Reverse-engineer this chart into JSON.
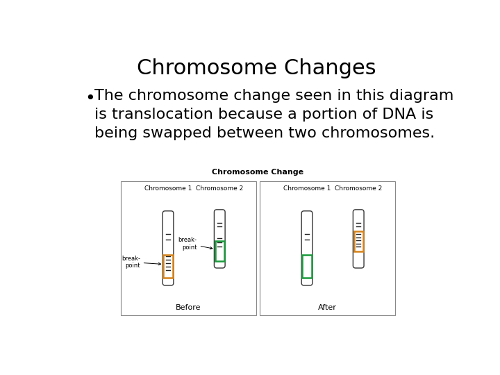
{
  "title": "Chromosome Changes",
  "bullet_text": "The chromosome change seen in this diagram\nis translocation because a portion of DNA is\nbeing swapped between two chromosomes.",
  "diagram_title": "Chromosome Change",
  "before_label": "Before",
  "after_label": "After",
  "chr1_label": "Chromosome 1",
  "chr2_label": "Chromosome 2",
  "break_point_label": "break-\npoint",
  "bg_color": "#ffffff",
  "text_color": "#000000",
  "orange_color": "#D4821A",
  "green_color": "#1A9A3C",
  "title_fontsize": 22,
  "bullet_fontsize": 16,
  "diagram_title_fontsize": 8,
  "chr_label_fontsize": 6.5,
  "before_after_fontsize": 8
}
